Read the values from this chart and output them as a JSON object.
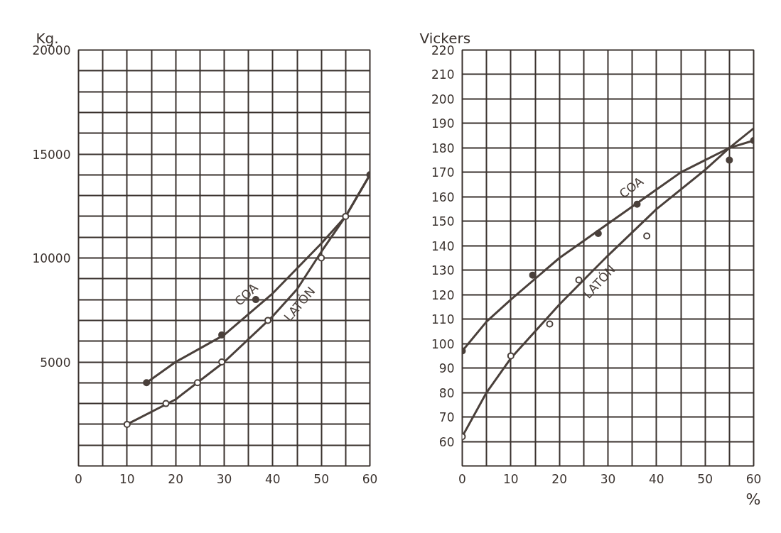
{
  "chart_data": [
    {
      "type": "line",
      "ylabel": "Kg.",
      "xlim": [
        0,
        60
      ],
      "ylim": [
        0,
        20000
      ],
      "xticks": [
        0,
        {
          "value": 5,
          "label": null
        },
        10,
        {
          "value": 15,
          "label": null
        },
        20,
        {
          "value": 25,
          "label": null
        },
        30,
        {
          "value": 35,
          "label": null
        },
        40,
        {
          "value": 45,
          "label": null
        },
        50,
        {
          "value": 55,
          "label": null
        },
        60
      ],
      "yticks": [
        {
          "value": 0,
          "label": null
        },
        {
          "value": 1000,
          "label": null
        },
        {
          "value": 2000,
          "label": null
        },
        {
          "value": 3000,
          "label": null
        },
        {
          "value": 4000,
          "label": null
        },
        5000,
        {
          "value": 6000,
          "label": null
        },
        {
          "value": 7000,
          "label": null
        },
        {
          "value": 8000,
          "label": null
        },
        {
          "value": 9000,
          "label": null
        },
        10000,
        {
          "value": 11000,
          "label": null
        },
        {
          "value": 12000,
          "label": null
        },
        {
          "value": 13000,
          "label": null
        },
        {
          "value": 14000,
          "label": null
        },
        15000,
        {
          "value": 16000,
          "label": null
        },
        {
          "value": 17000,
          "label": null
        },
        {
          "value": 18000,
          "label": null
        },
        {
          "value": 19000,
          "label": null
        },
        20000
      ],
      "grid": true,
      "legend": false,
      "series": [
        {
          "name": "COA",
          "color": "#4a403b",
          "x": [
            14,
            20,
            30,
            40,
            50,
            55,
            60
          ],
          "values": [
            4000,
            5000,
            6300,
            8300,
            10700,
            12000,
            14000
          ]
        },
        {
          "name": "LATÓN",
          "color": "#4a403b",
          "x": [
            10,
            20,
            30,
            40,
            45,
            50,
            55,
            60
          ],
          "values": [
            2000,
            3200,
            5000,
            7200,
            8500,
            10300,
            12000,
            14000
          ]
        },
        {
          "type": "scatter",
          "color": "#4a403b",
          "x": [
            14,
            29.5,
            36.5,
            60
          ],
          "values": [
            4000,
            6300,
            8000,
            14000
          ]
        },
        {
          "type": "scatter",
          "color": "#4a403b",
          "x": [
            10,
            18,
            24.5,
            29.5,
            39,
            50,
            55
          ],
          "values": [
            2000,
            3000,
            4000,
            5000,
            7000,
            10000,
            12000
          ]
        }
      ]
    },
    {
      "type": "line",
      "ylabel": "Vickers",
      "xlabel": "%",
      "xlim": [
        0,
        60
      ],
      "ylim": [
        50,
        220
      ],
      "xticks": [
        0,
        {
          "value": 5,
          "label": null
        },
        10,
        {
          "value": 15,
          "label": null
        },
        20,
        {
          "value": 25,
          "label": null
        },
        30,
        {
          "value": 35,
          "label": null
        },
        40,
        {
          "value": 45,
          "label": null
        },
        50,
        {
          "value": 55,
          "label": null
        },
        60
      ],
      "yticks": [
        {
          "value": 50,
          "label": null
        },
        60,
        70,
        80,
        90,
        100,
        110,
        120,
        130,
        140,
        150,
        160,
        170,
        180,
        190,
        200,
        210,
        220
      ],
      "grid": true,
      "legend": false,
      "series": [
        {
          "name": "COA",
          "color": "#4a403b",
          "x": [
            0,
            5,
            10,
            20,
            30,
            40,
            45,
            50,
            55,
            60
          ],
          "values": [
            97,
            109,
            118,
            135,
            149,
            163,
            170,
            175,
            180,
            183
          ]
        },
        {
          "name": "LATÓN",
          "color": "#4a403b",
          "x": [
            0,
            5,
            10,
            20,
            30,
            40,
            50,
            55,
            60
          ],
          "values": [
            62,
            80,
            94,
            116,
            136,
            155,
            171,
            180,
            188
          ]
        },
        {
          "type": "scatter",
          "color": "#4a403b",
          "x": [
            0,
            14.5,
            28,
            36,
            55,
            60
          ],
          "values": [
            97,
            128,
            145,
            157,
            175,
            183
          ]
        },
        {
          "type": "scatter",
          "color": "#4a403b",
          "x": [
            0,
            10,
            18,
            24,
            38
          ],
          "values": [
            62,
            95,
            108,
            126,
            144
          ]
        }
      ]
    }
  ]
}
